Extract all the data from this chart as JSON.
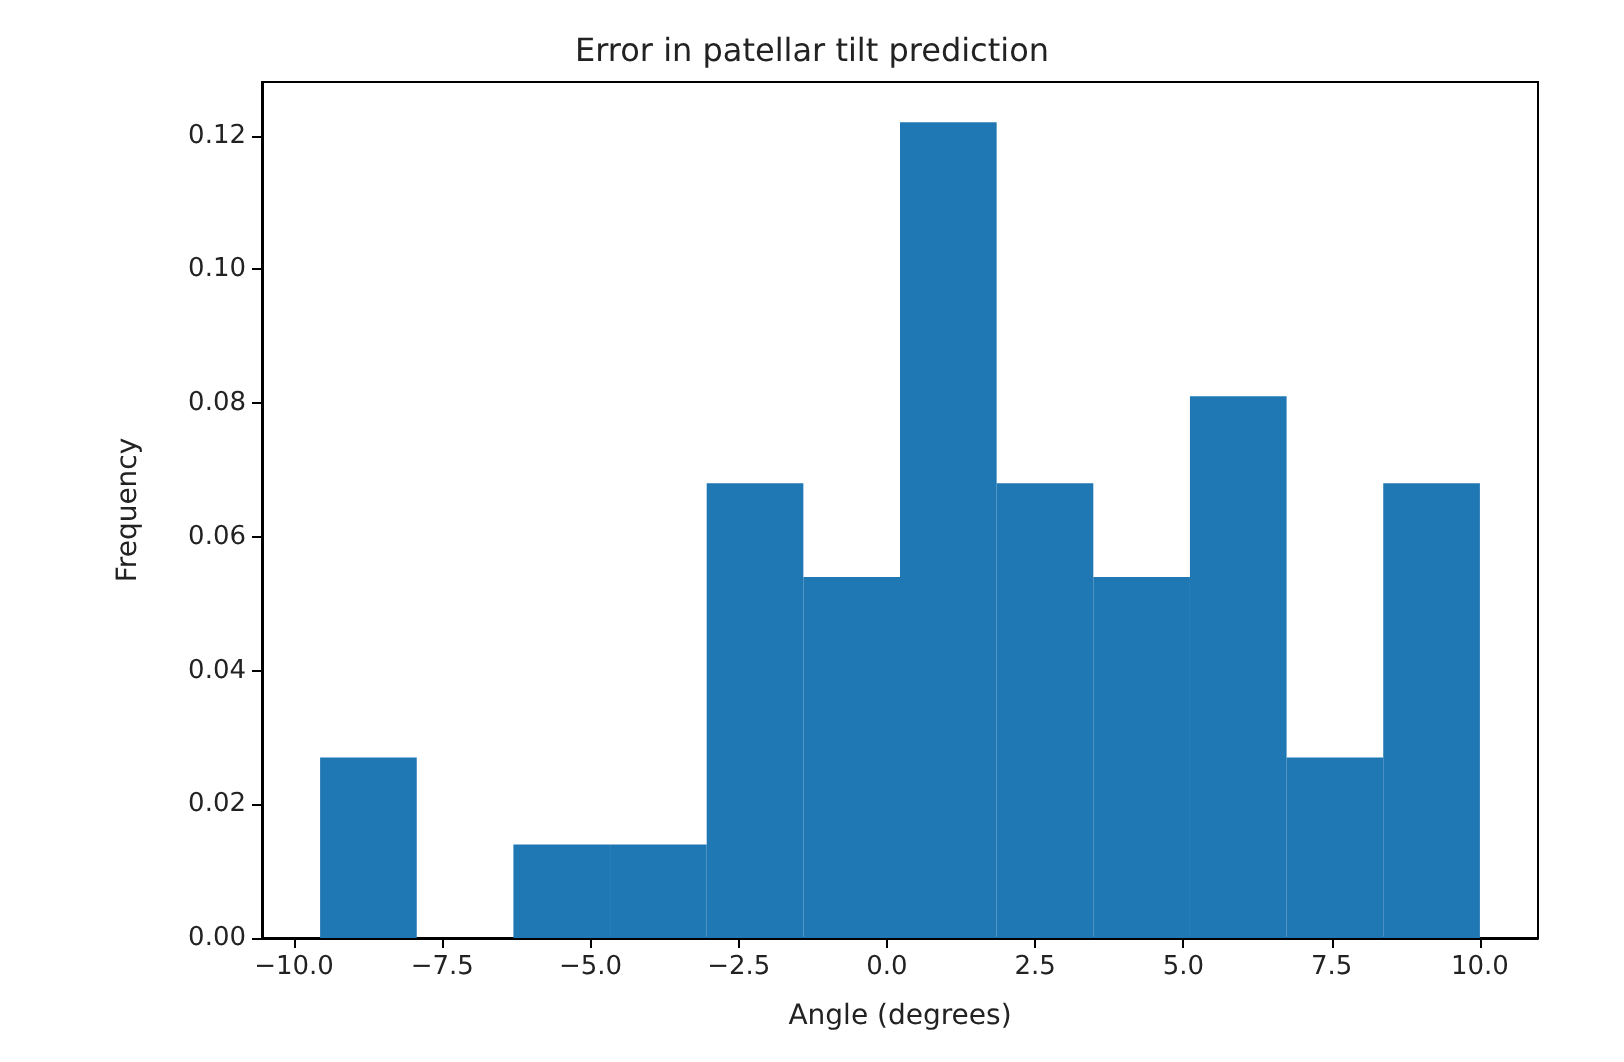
{
  "chart_data": {
    "type": "histogram",
    "title": "Error in patellar tilt prediction",
    "xlabel": "Angle (degrees)",
    "ylabel": "Frequency",
    "bins": [
      -9.56,
      -7.93,
      -6.3,
      -4.67,
      -3.04,
      -1.41,
      0.22,
      1.85,
      3.48,
      5.11,
      6.74,
      8.37,
      10.0
    ],
    "values": [
      0.027,
      0,
      0.014,
      0.014,
      0.068,
      0.054,
      0.122,
      0.068,
      0.054,
      0.081,
      0.027,
      0.068
    ],
    "color": "#1f77b4",
    "xlim": [
      -10.54,
      10.98
    ],
    "ylim": [
      0,
      0.128
    ],
    "xticks": [
      {
        "value": -10,
        "label": "−10.0"
      },
      {
        "value": -7.5,
        "label": "−7.5"
      },
      {
        "value": -5,
        "label": "−5.0"
      },
      {
        "value": -2.5,
        "label": "−2.5"
      },
      {
        "value": 0,
        "label": "0.0"
      },
      {
        "value": 2.5,
        "label": "2.5"
      },
      {
        "value": 5,
        "label": "5.0"
      },
      {
        "value": 7.5,
        "label": "7.5"
      },
      {
        "value": 10,
        "label": "10.0"
      }
    ],
    "yticks": [
      {
        "value": 0,
        "label": "0.00"
      },
      {
        "value": 0.02,
        "label": "0.02"
      },
      {
        "value": 0.04,
        "label": "0.04"
      },
      {
        "value": 0.06,
        "label": "0.06"
      },
      {
        "value": 0.08,
        "label": "0.08"
      },
      {
        "value": 0.1,
        "label": "0.10"
      },
      {
        "value": 0.12,
        "label": "0.12"
      }
    ],
    "grid": false
  }
}
